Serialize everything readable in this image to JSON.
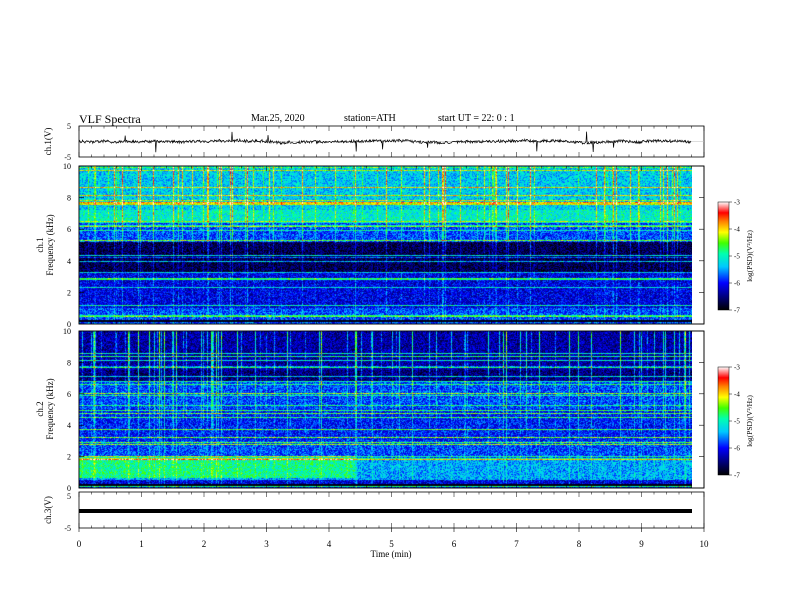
{
  "header": {
    "title": "VLF  Spectra",
    "date": "Mar.25, 2020",
    "station": "station=ATH",
    "start": "start  UT  =   22: 0  : 1"
  },
  "chart_data": [
    {
      "type": "line",
      "id": "ch1-waveform",
      "ylabel": "ch.1(V)",
      "ylim": [
        -5,
        5
      ],
      "yticks": [
        "5",
        "-5"
      ],
      "xlim": [
        0,
        10
      ],
      "baseline": 0
    },
    {
      "type": "heatmap",
      "id": "ch1-spectrogram",
      "ylabel_lines": [
        "ch.1",
        "Frequency  (kHz)"
      ],
      "ylim": [
        0,
        10
      ],
      "yticks": [
        "0",
        "2",
        "4",
        "6",
        "8",
        "10"
      ],
      "xlim": [
        0,
        10
      ],
      "data_xmax": 9.8,
      "colorbar": {
        "label": "log(PSD)(V²/Hz)",
        "range": [
          -7,
          -3
        ],
        "ticks": [
          "-3",
          "-4",
          "-5",
          "-6",
          "-7"
        ]
      }
    },
    {
      "type": "heatmap",
      "id": "ch2-spectrogram",
      "ylabel_lines": [
        "ch.2",
        "Frequency  (kHz)"
      ],
      "ylim": [
        0,
        10
      ],
      "yticks": [
        "0",
        "2",
        "4",
        "6",
        "8",
        "10"
      ],
      "xlim": [
        0,
        10
      ],
      "data_xmax": 9.8,
      "colorbar": {
        "label": "log(PSD)(V²/Hz)",
        "range": [
          -7,
          -3
        ],
        "ticks": [
          "-3",
          "-4",
          "-5",
          "-6",
          "-7"
        ]
      }
    },
    {
      "type": "line",
      "id": "ch3-waveform",
      "ylabel": "ch.3(V)",
      "ylim": [
        -5,
        5
      ],
      "yticks": [
        "5",
        "-5"
      ],
      "xlim": [
        0,
        10
      ],
      "xlabel": "Time  (min)",
      "xticks": [
        "0",
        "1",
        "2",
        "3",
        "4",
        "5",
        "6",
        "7",
        "8",
        "9",
        "10"
      ],
      "baseline": 0
    }
  ]
}
